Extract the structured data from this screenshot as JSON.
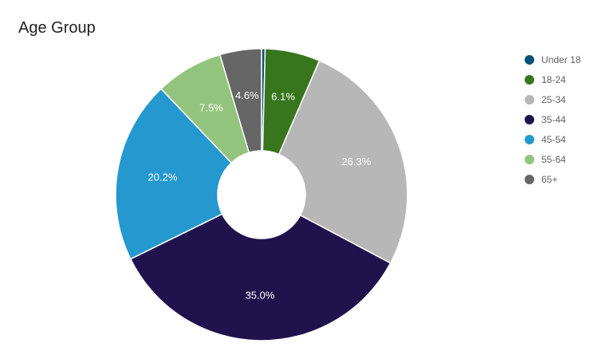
{
  "chart_data": {
    "type": "pie",
    "donut": true,
    "title": "Age Group",
    "legend_position": "right",
    "slices": [
      {
        "label": "Under 18",
        "value": 0.4,
        "color": "#0b5077",
        "value_label": ""
      },
      {
        "label": "18-24",
        "value": 6.1,
        "color": "#38761d",
        "value_label": "6.1%"
      },
      {
        "label": "25-34",
        "value": 26.3,
        "color": "#b7b7b7",
        "value_label": "26.3%"
      },
      {
        "label": "35-44",
        "value": 35.0,
        "color": "#20124d",
        "value_label": "35.0%"
      },
      {
        "label": "45-54",
        "value": 20.2,
        "color": "#2498cf",
        "value_label": "20.2%"
      },
      {
        "label": "55-64",
        "value": 7.5,
        "color": "#93c47d",
        "value_label": "7.5%"
      },
      {
        "label": "65+",
        "value": 4.6,
        "color": "#666666",
        "value_label": "4.6%"
      }
    ]
  }
}
